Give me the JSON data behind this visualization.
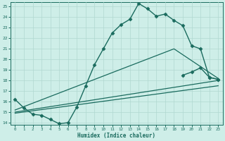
{
  "xlabel": "Humidex (Indice chaleur)",
  "bg_color": "#ceeee8",
  "line_color": "#1a6b5e",
  "grid_color": "#b0d8d0",
  "xlim": [
    -0.5,
    23.5
  ],
  "ylim": [
    13.8,
    25.4
  ],
  "xticks": [
    0,
    1,
    2,
    3,
    4,
    5,
    6,
    7,
    8,
    9,
    10,
    11,
    12,
    13,
    14,
    15,
    16,
    17,
    18,
    19,
    20,
    21,
    22,
    23
  ],
  "yticks": [
    14,
    15,
    16,
    17,
    18,
    19,
    20,
    21,
    22,
    23,
    24,
    25
  ],
  "series": [
    {
      "x": [
        0,
        1,
        2,
        3,
        4,
        5,
        6,
        7,
        8,
        9,
        10,
        11,
        12,
        13,
        14,
        15,
        16,
        17,
        18,
        19,
        20,
        21,
        22,
        23
      ],
      "y": [
        16.2,
        15.4,
        14.8,
        14.7,
        14.3,
        13.9,
        14.0,
        15.5,
        17.5,
        19.5,
        21.0,
        22.5,
        23.3,
        23.8,
        25.3,
        24.8,
        24.1,
        24.3,
        23.7,
        23.2,
        21.3,
        21.0,
        18.3,
        18.1
      ],
      "marker": "D",
      "markersize": 2.5,
      "linewidth": 1.0,
      "has_markers": true
    },
    {
      "x": [
        0,
        18,
        23
      ],
      "y": [
        15.2,
        21.0,
        18.2
      ],
      "marker": null,
      "markersize": 0,
      "linewidth": 0.9,
      "has_markers": false
    },
    {
      "x": [
        0,
        23
      ],
      "y": [
        15.0,
        18.0
      ],
      "marker": null,
      "markersize": 0,
      "linewidth": 0.9,
      "has_markers": false
    },
    {
      "x": [
        0,
        23
      ],
      "y": [
        14.9,
        17.5
      ],
      "marker": null,
      "markersize": 0,
      "linewidth": 0.9,
      "has_markers": false
    },
    {
      "x": [
        19,
        20,
        21,
        22,
        23
      ],
      "y": [
        18.5,
        18.8,
        19.2,
        18.3,
        18.1
      ],
      "marker": "D",
      "markersize": 2.5,
      "linewidth": 1.0,
      "has_markers": true
    }
  ]
}
